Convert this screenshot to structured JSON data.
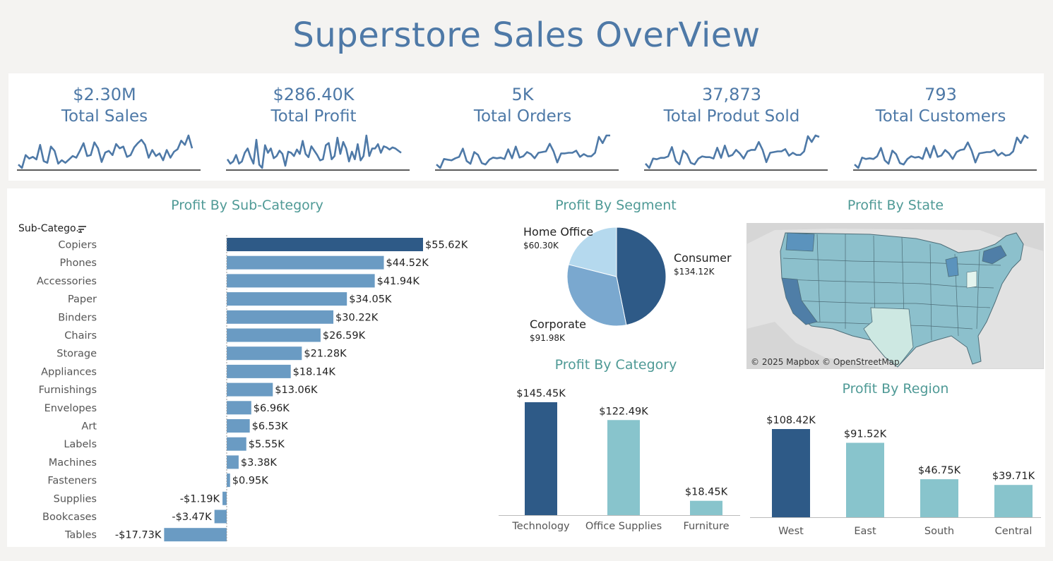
{
  "title": "Superstore Sales OverView",
  "colors": {
    "title": "#4e79a7",
    "dark_bar": "#2e5a87",
    "mid_bar": "#6a9bc3",
    "teal": "#88c4cc",
    "section_title": "#4f9a96"
  },
  "kpis": [
    {
      "value": "$2.30M",
      "label": "Total Sales",
      "trend": [
        4,
        0,
        15,
        11,
        13,
        10,
        27,
        8,
        6,
        25,
        20,
        5,
        9,
        6,
        10,
        14,
        12,
        20,
        29,
        14,
        15,
        30,
        23,
        7,
        18,
        20,
        15,
        28,
        23,
        25,
        13,
        15,
        24,
        29,
        33,
        27,
        12,
        21,
        14,
        17,
        9,
        21,
        12,
        19,
        22,
        32,
        27,
        38,
        23
      ]
    },
    {
      "value": "$286.40K",
      "label": "Total Profit",
      "trend": [
        12,
        8,
        10,
        16,
        8,
        10,
        18,
        22,
        14,
        8,
        30,
        7,
        4,
        25,
        18,
        22,
        13,
        15,
        20,
        17,
        6,
        19,
        18,
        15,
        21,
        17,
        29,
        17,
        14,
        24,
        20,
        16,
        11,
        12,
        25,
        27,
        12,
        15,
        32,
        17,
        28,
        22,
        10,
        19,
        12,
        26,
        11,
        15,
        34,
        15,
        22,
        22,
        26,
        18,
        24,
        23,
        21,
        23,
        22,
        20,
        18
      ]
    },
    {
      "value": "5K",
      "label": "Total Orders",
      "trend": [
        5,
        0,
        13,
        12,
        11,
        14,
        16,
        28,
        10,
        6,
        23,
        19,
        7,
        5,
        12,
        15,
        14,
        15,
        13,
        27,
        14,
        31,
        15,
        17,
        23,
        20,
        14,
        22,
        23,
        24,
        35,
        24,
        8,
        21,
        21,
        22,
        22,
        25,
        16,
        20,
        17,
        17,
        22,
        45,
        36,
        47,
        47
      ]
    },
    {
      "value": "37,873",
      "label": "Total Produt Sold",
      "trend": [
        6,
        0,
        13,
        12,
        14,
        14,
        16,
        29,
        10,
        5,
        24,
        19,
        7,
        5,
        13,
        16,
        15,
        15,
        13,
        28,
        14,
        31,
        16,
        18,
        25,
        20,
        13,
        23,
        25,
        25,
        36,
        25,
        8,
        21,
        22,
        23,
        23,
        26,
        17,
        21,
        18,
        18,
        23,
        44,
        36,
        45,
        43
      ]
    },
    {
      "value": "793",
      "label": "Total Customers",
      "trend": [
        5,
        0,
        15,
        13,
        14,
        13,
        17,
        29,
        11,
        6,
        25,
        20,
        7,
        5,
        13,
        17,
        15,
        16,
        13,
        29,
        15,
        32,
        16,
        18,
        26,
        21,
        13,
        23,
        26,
        27,
        37,
        25,
        8,
        21,
        22,
        23,
        23,
        26,
        18,
        22,
        18,
        19,
        24,
        44,
        36,
        47,
        43
      ]
    }
  ],
  "subcat_chart": {
    "title": "Profit By Sub-Category",
    "header": "Sub-Catego..",
    "chart_data": {
      "type": "bar",
      "orientation": "horizontal",
      "categories": [
        "Copiers",
        "Phones",
        "Accessories",
        "Paper",
        "Binders",
        "Chairs",
        "Storage",
        "Appliances",
        "Furnishings",
        "Envelopes",
        "Art",
        "Labels",
        "Machines",
        "Fasteners",
        "Supplies",
        "Bookcases",
        "Tables"
      ],
      "values": [
        55.62,
        44.52,
        41.94,
        34.05,
        30.22,
        26.59,
        21.28,
        18.14,
        13.06,
        6.96,
        6.53,
        5.55,
        3.38,
        0.95,
        -1.19,
        -3.47,
        -17.73
      ],
      "labels": [
        "$55.62K",
        "$44.52K",
        "$41.94K",
        "$34.05K",
        "$30.22K",
        "$26.59K",
        "$21.28K",
        "$18.14K",
        "$13.06K",
        "$6.96K",
        "$6.53K",
        "$5.55K",
        "$3.38K",
        "$0.95K",
        "-$1.19K",
        "-$3.47K",
        "-$17.73K"
      ],
      "unit": "K"
    }
  },
  "segment_chart": {
    "title": "Profit By Segment",
    "chart_data": {
      "type": "pie",
      "categories": [
        "Consumer",
        "Corporate",
        "Home Office"
      ],
      "values": [
        134.12,
        91.98,
        60.3
      ],
      "labels": [
        "$134.12K",
        "$91.98K",
        "$60.30K"
      ],
      "colors": [
        "#2e5a87",
        "#7aa8cf",
        "#b5d9ee"
      ]
    }
  },
  "state_map": {
    "title": "Profit By State",
    "attribution": "© 2025 Mapbox © OpenStreetMap"
  },
  "category_chart": {
    "title": "Profit By Category",
    "chart_data": {
      "type": "bar",
      "categories": [
        "Technology",
        "Office Supplies",
        "Furniture"
      ],
      "values": [
        145.45,
        122.49,
        18.45
      ],
      "labels": [
        "$145.45K",
        "$122.49K",
        "$18.45K"
      ]
    }
  },
  "region_chart": {
    "title": "Profit By Region",
    "chart_data": {
      "type": "bar",
      "categories": [
        "West",
        "East",
        "South",
        "Central"
      ],
      "values": [
        108.42,
        91.52,
        46.75,
        39.71
      ],
      "labels": [
        "$108.42K",
        "$91.52K",
        "$46.75K",
        "$39.71K"
      ]
    }
  }
}
